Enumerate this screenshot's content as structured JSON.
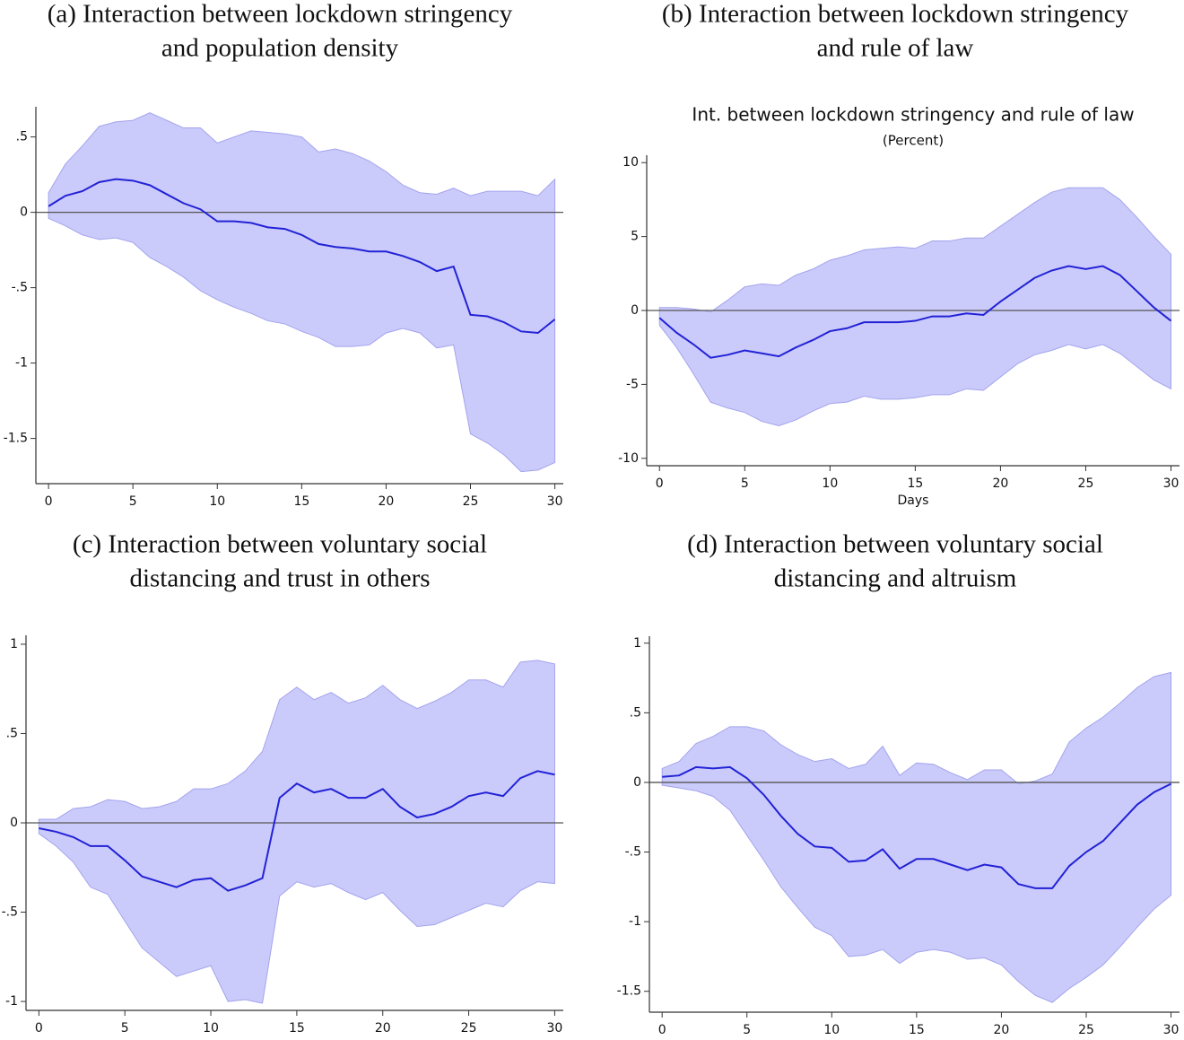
{
  "chart_data": [
    {
      "type": "line",
      "title": [
        "(a) Interaction between lockdown stringency",
        "and population density"
      ],
      "x": [
        0,
        1,
        2,
        3,
        4,
        5,
        6,
        7,
        8,
        9,
        10,
        11,
        12,
        13,
        14,
        15,
        16,
        17,
        18,
        19,
        20,
        21,
        22,
        23,
        24,
        25,
        26,
        27,
        28,
        29,
        30
      ],
      "values": [
        0.04,
        0.11,
        0.14,
        0.2,
        0.22,
        0.21,
        0.18,
        0.12,
        0.06,
        0.02,
        -0.06,
        -0.06,
        -0.07,
        -0.1,
        -0.11,
        -0.15,
        -0.21,
        -0.23,
        -0.24,
        -0.26,
        -0.26,
        -0.29,
        -0.33,
        -0.39,
        -0.36,
        -0.68,
        -0.69,
        -0.73,
        -0.79,
        -0.8,
        -0.71
      ],
      "upper": [
        0.13,
        0.32,
        0.44,
        0.57,
        0.6,
        0.61,
        0.66,
        0.61,
        0.56,
        0.56,
        0.46,
        0.5,
        0.54,
        0.53,
        0.52,
        0.5,
        0.4,
        0.42,
        0.39,
        0.34,
        0.27,
        0.18,
        0.13,
        0.12,
        0.16,
        0.11,
        0.14,
        0.14,
        0.14,
        0.11,
        0.22
      ],
      "lower": [
        -0.04,
        -0.09,
        -0.15,
        -0.18,
        -0.17,
        -0.2,
        -0.3,
        -0.36,
        -0.43,
        -0.52,
        -0.58,
        -0.63,
        -0.67,
        -0.72,
        -0.74,
        -0.79,
        -0.83,
        -0.89,
        -0.89,
        -0.88,
        -0.8,
        -0.77,
        -0.8,
        -0.9,
        -0.88,
        -1.47,
        -1.53,
        -1.61,
        -1.72,
        -1.71,
        -1.66
      ],
      "color": "#2222d6",
      "band_color": "#cbcbfb",
      "reference_line": 0,
      "xlim": [
        -0.75,
        30.5
      ],
      "xticks": [
        0,
        5,
        10,
        15,
        20,
        25,
        30
      ],
      "ylim": [
        -1.8,
        0.7
      ],
      "yticks": [
        {
          "value": -1.5,
          "label": "-1.5"
        },
        -1,
        {
          "value": -0.5,
          "label": "-.5"
        },
        0,
        {
          "value": 0.5,
          "label": ".5"
        }
      ]
    },
    {
      "type": "line",
      "title": [
        "(b) Interaction between lockdown stringency",
        "and rule of law"
      ],
      "inner_title": "Int. between lockdown stringency and rule of law",
      "subtitle": "(Percent)",
      "xlabel": "Days",
      "x": [
        0,
        1,
        2,
        3,
        4,
        5,
        6,
        7,
        8,
        9,
        10,
        11,
        12,
        13,
        14,
        15,
        16,
        17,
        18,
        19,
        20,
        21,
        22,
        23,
        24,
        25,
        26,
        27,
        28,
        29,
        30
      ],
      "values": [
        -0.5,
        -1.5,
        -2.3,
        -3.2,
        -3.0,
        -2.7,
        -2.9,
        -3.1,
        -2.5,
        -2.0,
        -1.4,
        -1.2,
        -0.8,
        -0.8,
        -0.8,
        -0.7,
        -0.4,
        -0.4,
        -0.2,
        -0.3,
        0.6,
        1.4,
        2.2,
        2.7,
        3.0,
        2.8,
        3.0,
        2.4,
        1.3,
        0.2,
        -0.7
      ],
      "upper": [
        0.2,
        0.2,
        0.1,
        -0.1,
        0.7,
        1.6,
        1.8,
        1.7,
        2.4,
        2.8,
        3.4,
        3.7,
        4.1,
        4.2,
        4.3,
        4.2,
        4.7,
        4.7,
        4.9,
        4.9,
        5.7,
        6.5,
        7.3,
        8.0,
        8.3,
        8.3,
        8.3,
        7.5,
        6.3,
        5.0,
        3.8
      ],
      "lower": [
        -1.0,
        -2.5,
        -4.3,
        -6.2,
        -6.6,
        -6.9,
        -7.5,
        -7.8,
        -7.4,
        -6.8,
        -6.3,
        -6.2,
        -5.8,
        -6.0,
        -6.0,
        -5.9,
        -5.7,
        -5.7,
        -5.3,
        -5.4,
        -4.5,
        -3.6,
        -3.0,
        -2.7,
        -2.3,
        -2.6,
        -2.3,
        -2.9,
        -3.8,
        -4.7,
        -5.3
      ],
      "color": "#2222d6",
      "band_color": "#cbcbfb",
      "reference_line": 0,
      "xlim": [
        -0.75,
        30.5
      ],
      "xticks": [
        0,
        5,
        10,
        15,
        20,
        25,
        30
      ],
      "ylim": [
        -10.5,
        10.5
      ],
      "yticks": [
        -10,
        -5,
        0,
        5,
        10
      ]
    },
    {
      "type": "line",
      "title": [
        "(c) Interaction between voluntary social",
        "distancing and trust in others"
      ],
      "x": [
        0,
        1,
        2,
        3,
        4,
        5,
        6,
        7,
        8,
        9,
        10,
        11,
        12,
        13,
        14,
        15,
        16,
        17,
        18,
        19,
        20,
        21,
        22,
        23,
        24,
        25,
        26,
        27,
        28,
        29,
        30
      ],
      "values": [
        -0.03,
        -0.05,
        -0.08,
        -0.13,
        -0.13,
        -0.21,
        -0.3,
        -0.33,
        -0.36,
        -0.32,
        -0.31,
        -0.38,
        -0.35,
        -0.31,
        0.14,
        0.22,
        0.17,
        0.19,
        0.14,
        0.14,
        0.19,
        0.09,
        0.03,
        0.05,
        0.09,
        0.15,
        0.17,
        0.15,
        0.25,
        0.29,
        0.27
      ],
      "upper": [
        0.02,
        0.02,
        0.08,
        0.09,
        0.13,
        0.12,
        0.08,
        0.09,
        0.12,
        0.19,
        0.19,
        0.22,
        0.29,
        0.4,
        0.69,
        0.76,
        0.69,
        0.73,
        0.67,
        0.7,
        0.77,
        0.69,
        0.64,
        0.68,
        0.73,
        0.8,
        0.8,
        0.76,
        0.9,
        0.91,
        0.89
      ],
      "lower": [
        -0.06,
        -0.13,
        -0.22,
        -0.36,
        -0.4,
        -0.55,
        -0.7,
        -0.78,
        -0.86,
        -0.83,
        -0.8,
        -1.0,
        -0.99,
        -1.01,
        -0.41,
        -0.33,
        -0.36,
        -0.34,
        -0.39,
        -0.43,
        -0.39,
        -0.49,
        -0.58,
        -0.57,
        -0.53,
        -0.49,
        -0.45,
        -0.47,
        -0.38,
        -0.33,
        -0.34
      ],
      "color": "#2222d6",
      "band_color": "#cbcbfb",
      "reference_line": 0,
      "xlim": [
        -0.75,
        30.5
      ],
      "xticks": [
        0,
        5,
        10,
        15,
        20,
        25,
        30
      ],
      "ylim": [
        -1.05,
        1.05
      ],
      "yticks": [
        -1,
        {
          "value": -0.5,
          "label": "-.5"
        },
        0,
        {
          "value": 0.5,
          "label": ".5"
        },
        1
      ]
    },
    {
      "type": "line",
      "title": [
        "(d) Interaction between voluntary social",
        "distancing and altruism"
      ],
      "x": [
        0,
        1,
        2,
        3,
        4,
        5,
        6,
        7,
        8,
        9,
        10,
        11,
        12,
        13,
        14,
        15,
        16,
        17,
        18,
        19,
        20,
        21,
        22,
        23,
        24,
        25,
        26,
        27,
        28,
        29,
        30
      ],
      "values": [
        0.04,
        0.05,
        0.11,
        0.1,
        0.11,
        0.03,
        -0.09,
        -0.24,
        -0.37,
        -0.46,
        -0.47,
        -0.57,
        -0.56,
        -0.48,
        -0.62,
        -0.55,
        -0.55,
        -0.59,
        -0.63,
        -0.59,
        -0.61,
        -0.73,
        -0.76,
        -0.76,
        -0.6,
        -0.5,
        -0.42,
        -0.29,
        -0.16,
        -0.07,
        -0.01
      ],
      "upper": [
        0.1,
        0.15,
        0.28,
        0.33,
        0.4,
        0.4,
        0.37,
        0.27,
        0.2,
        0.15,
        0.17,
        0.1,
        0.13,
        0.26,
        0.05,
        0.14,
        0.13,
        0.07,
        0.02,
        0.09,
        0.09,
        -0.01,
        0.01,
        0.06,
        0.29,
        0.39,
        0.47,
        0.57,
        0.68,
        0.76,
        0.79
      ],
      "lower": [
        -0.02,
        -0.04,
        -0.06,
        -0.1,
        -0.2,
        -0.38,
        -0.56,
        -0.75,
        -0.9,
        -1.04,
        -1.1,
        -1.25,
        -1.24,
        -1.2,
        -1.3,
        -1.22,
        -1.2,
        -1.22,
        -1.27,
        -1.26,
        -1.31,
        -1.43,
        -1.53,
        -1.58,
        -1.48,
        -1.4,
        -1.31,
        -1.18,
        -1.04,
        -0.91,
        -0.81
      ],
      "color": "#2222d6",
      "band_color": "#cbcbfb",
      "reference_line": 0,
      "xlim": [
        -0.75,
        30.5
      ],
      "xticks": [
        0,
        5,
        10,
        15,
        20,
        25,
        30
      ],
      "ylim": [
        -1.65,
        1.05
      ],
      "yticks": [
        {
          "value": -1.5,
          "label": "-1.5"
        },
        -1,
        {
          "value": -0.5,
          "label": "-.5"
        },
        0,
        {
          "value": 0.5,
          "label": ".5"
        },
        1
      ]
    }
  ]
}
